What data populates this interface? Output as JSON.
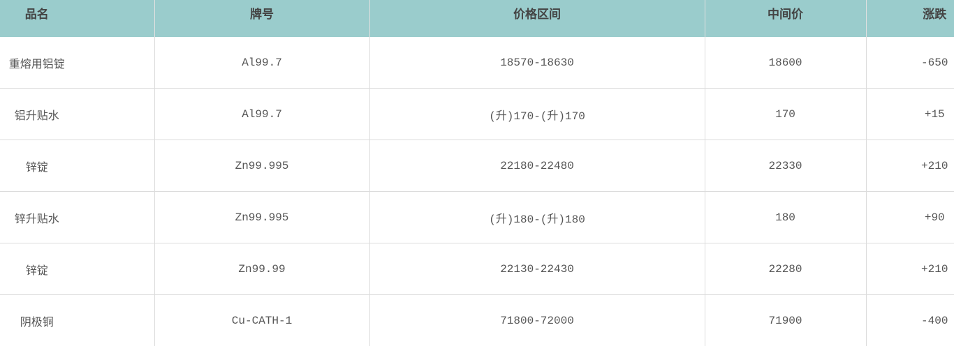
{
  "table": {
    "headers": [
      "品名",
      "牌号",
      "价格区间",
      "中间价",
      "涨跌"
    ],
    "rows": [
      [
        "重熔用铝锭",
        "Al99.7",
        "18570-18630",
        "18600",
        "-650"
      ],
      [
        "铝升贴水",
        "Al99.7",
        "(升)170-(升)170",
        "170",
        "+15"
      ],
      [
        "锌锭",
        "Zn99.995",
        "22180-22480",
        "22330",
        "+210"
      ],
      [
        "锌升贴水",
        "Zn99.995",
        "(升)180-(升)180",
        "180",
        "+90"
      ],
      [
        "锌锭",
        "Zn99.99",
        "22130-22430",
        "22280",
        "+210"
      ],
      [
        "阴极铜",
        "Cu-CATH-1",
        "71800-72000",
        "71900",
        "-400"
      ]
    ]
  },
  "colors": {
    "header_bg": "#9acccc",
    "header_text": "#444444",
    "body_text": "#555555"
  }
}
